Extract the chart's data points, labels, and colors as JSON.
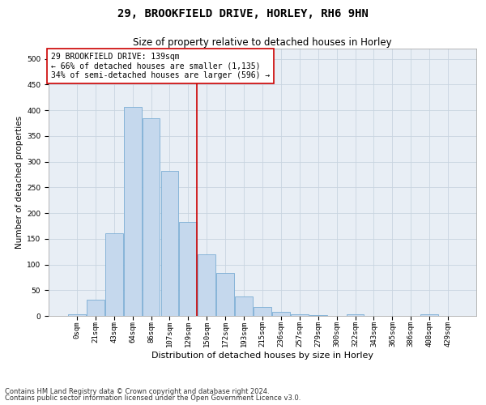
{
  "title": "29, BROOKFIELD DRIVE, HORLEY, RH6 9HN",
  "subtitle": "Size of property relative to detached houses in Horley",
  "xlabel": "Distribution of detached houses by size in Horley",
  "ylabel": "Number of detached properties",
  "bar_labels": [
    "0sqm",
    "21sqm",
    "43sqm",
    "64sqm",
    "86sqm",
    "107sqm",
    "129sqm",
    "150sqm",
    "172sqm",
    "193sqm",
    "215sqm",
    "236sqm",
    "257sqm",
    "279sqm",
    "300sqm",
    "322sqm",
    "343sqm",
    "365sqm",
    "386sqm",
    "408sqm",
    "429sqm"
  ],
  "bar_heights": [
    3,
    32,
    160,
    407,
    385,
    282,
    183,
    120,
    84,
    38,
    17,
    8,
    3,
    1,
    0,
    3,
    0,
    0,
    0,
    3,
    0
  ],
  "bar_color": "#c5d8ed",
  "bar_edge_color": "#7aadd4",
  "vline_color": "#cc0000",
  "annotation_title": "29 BROOKFIELD DRIVE: 139sqm",
  "annotation_line1": "← 66% of detached houses are smaller (1,135)",
  "annotation_line2": "34% of semi-detached houses are larger (596) →",
  "annotation_box_color": "#ffffff",
  "annotation_box_edge_color": "#cc0000",
  "grid_color": "#c8d4e0",
  "background_color": "#e8eef5",
  "ylim": [
    0,
    520
  ],
  "yticks": [
    0,
    50,
    100,
    150,
    200,
    250,
    300,
    350,
    400,
    450,
    500
  ],
  "footer_line1": "Contains HM Land Registry data © Crown copyright and database right 2024.",
  "footer_line2": "Contains public sector information licensed under the Open Government Licence v3.0.",
  "title_fontsize": 10,
  "subtitle_fontsize": 8.5,
  "xlabel_fontsize": 8,
  "ylabel_fontsize": 7.5,
  "tick_fontsize": 6.5,
  "annotation_fontsize": 7,
  "footer_fontsize": 6
}
